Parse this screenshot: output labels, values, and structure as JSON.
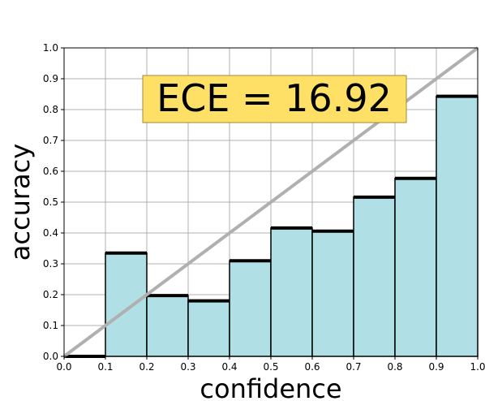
{
  "chart_data": {
    "type": "bar",
    "xlabel": "confidence",
    "ylabel": "accuracy",
    "xlim": [
      0.0,
      1.0
    ],
    "ylim": [
      0.0,
      1.0
    ],
    "grid": true,
    "xticks": [
      "0.0",
      "0.1",
      "0.2",
      "0.3",
      "0.4",
      "0.5",
      "0.6",
      "0.7",
      "0.8",
      "0.9",
      "1.0"
    ],
    "yticks": [
      "0.0",
      "0.1",
      "0.2",
      "0.3",
      "0.4",
      "0.5",
      "0.6",
      "0.7",
      "0.8",
      "0.9",
      "1.0"
    ],
    "bins": [
      {
        "x0": 0.0,
        "x1": 0.1,
        "value": 0.0
      },
      {
        "x0": 0.1,
        "x1": 0.2,
        "value": 0.335
      },
      {
        "x0": 0.2,
        "x1": 0.3,
        "value": 0.197
      },
      {
        "x0": 0.3,
        "x1": 0.4,
        "value": 0.18
      },
      {
        "x0": 0.4,
        "x1": 0.5,
        "value": 0.31
      },
      {
        "x0": 0.5,
        "x1": 0.6,
        "value": 0.416
      },
      {
        "x0": 0.6,
        "x1": 0.7,
        "value": 0.406
      },
      {
        "x0": 0.7,
        "x1": 0.8,
        "value": 0.516
      },
      {
        "x0": 0.8,
        "x1": 0.9,
        "value": 0.577
      },
      {
        "x0": 0.9,
        "x1": 1.0,
        "value": 0.843
      }
    ],
    "reference_line": {
      "from": [
        0.0,
        0.0
      ],
      "to": [
        1.0,
        1.0
      ]
    },
    "annotation": "ECE = 16.92",
    "colors": {
      "bar_fill": "#b0dfe5",
      "bar_edge": "#000000",
      "diagonal": "#b0b0b0",
      "grid": "#b0b0b0",
      "annotation_bg": "#ffe066",
      "annotation_border": "#a08a3c"
    }
  }
}
